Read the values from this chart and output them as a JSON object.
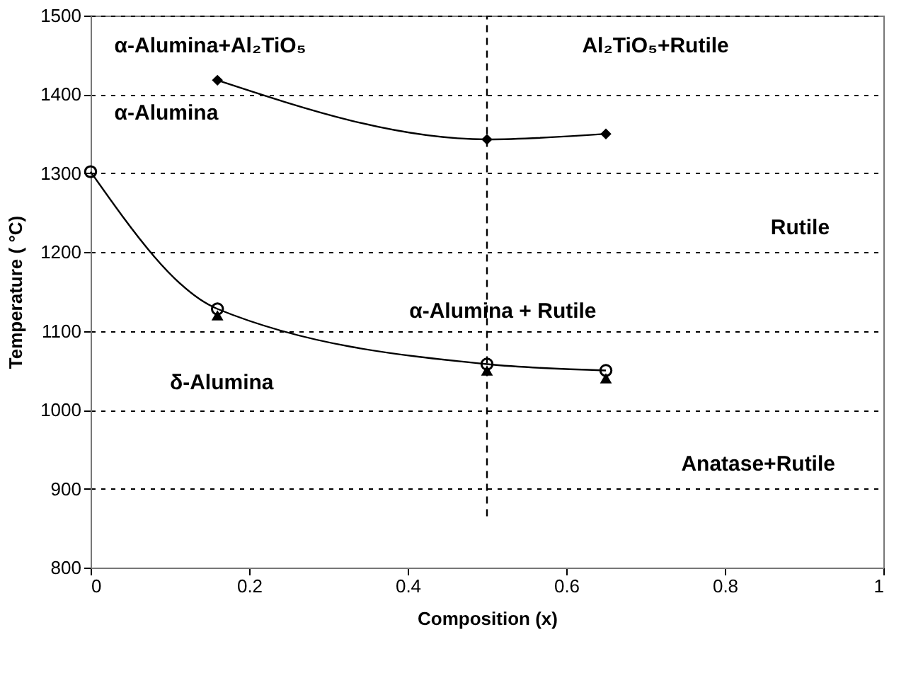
{
  "chart_data": {
    "type": "line",
    "xlabel": "Composition (x)",
    "ylabel": "Temperature ( °C)",
    "xlim": [
      0,
      1
    ],
    "xticks": [
      0,
      0.2,
      0.4,
      0.6,
      0.8,
      1
    ],
    "ylim": [
      800,
      1500
    ],
    "yticks": [
      800,
      900,
      1000,
      1100,
      1200,
      1300,
      1400,
      1500
    ],
    "grid": "y",
    "legend": false,
    "series": [
      {
        "color": "#000000",
        "x": [
          0.16,
          0.5,
          0.65
        ],
        "values": [
          1418,
          1343,
          1350
        ],
        "marker": "diamond",
        "line_style": "solid"
      },
      {
        "color": "#000000",
        "x": [
          0,
          0.16,
          0.5,
          0.65
        ],
        "values": [
          1302,
          1128,
          1058,
          1050
        ],
        "marker": "circle",
        "line_style": "solid"
      },
      {
        "type": "scatter",
        "color": "#000000",
        "x": [
          0.16,
          0.5,
          0.65
        ],
        "values": [
          1120,
          1050,
          1040
        ],
        "marker": "triangle"
      },
      {
        "color": "#000000",
        "x": [
          0.5,
          0.5
        ],
        "values": [
          865,
          1500
        ],
        "marker": "none",
        "line_style": "dashed"
      }
    ],
    "annotations": [
      "α-Alumina+Al₂TiO₅",
      "α-Alumina",
      "Al₂TiO₅+Rutile",
      "Rutile",
      "α-Alumina + Rutile",
      "δ-Alumina",
      "Anatase+Rutile"
    ]
  }
}
